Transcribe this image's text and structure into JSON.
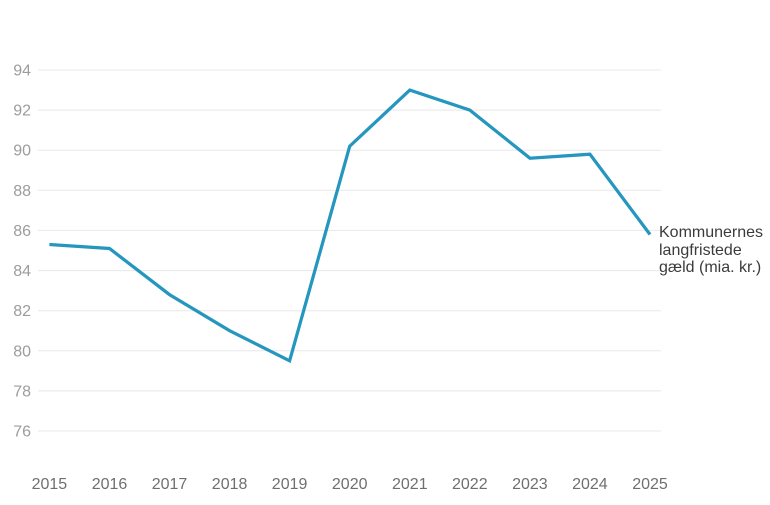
{
  "chart_data": {
    "type": "line",
    "title": "",
    "x": [
      "2015",
      "2016",
      "2017",
      "2018",
      "2019",
      "2020",
      "2021",
      "2022",
      "2023",
      "2024",
      "2025"
    ],
    "series": [
      {
        "name": "Kommunernes langfristede gæld (mia. kr.)",
        "values": [
          85.3,
          85.1,
          82.8,
          81.0,
          79.5,
          90.2,
          93.0,
          92.0,
          89.6,
          89.8,
          85.8
        ]
      }
    ],
    "xlabel": "",
    "ylabel": "",
    "ylim": [
      76,
      94
    ],
    "yticks": [
      94,
      92,
      90,
      88,
      86,
      84,
      82,
      80,
      78,
      76
    ],
    "grid": "horizontal-only",
    "legend_position": "annotation at end of line, right side",
    "annotation": {
      "lines": [
        "Kommunernes",
        "langfristede",
        "gæld (mia. kr.)"
      ]
    },
    "colors": {
      "line": "#2596be",
      "grid": "#e8e8e8",
      "y_tick_label": "#9c9c9c",
      "x_tick_label": "#6f6f6f",
      "annotation_text": "#3b3b3b",
      "background": "#ffffff"
    }
  }
}
